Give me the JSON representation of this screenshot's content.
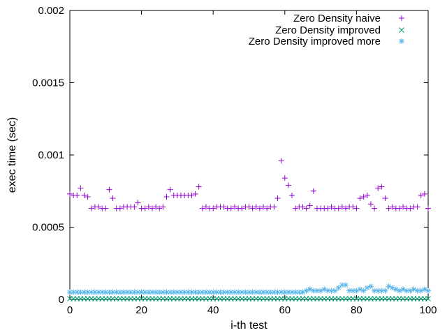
{
  "chart_data": {
    "type": "scatter",
    "title": "",
    "xlabel": "i-th test",
    "ylabel": "exec time (sec)",
    "xlim": [
      0,
      100
    ],
    "ylim": [
      0,
      0.002
    ],
    "xticks": [
      0,
      20,
      40,
      60,
      80,
      100
    ],
    "xtick_labels": [
      "0",
      "20",
      "40",
      "60",
      "80",
      "100"
    ],
    "yticks": [
      0,
      0.0005,
      0.001,
      0.0015,
      0.002
    ],
    "ytick_labels": [
      "0",
      "0.0005",
      "0.001",
      "0.0015",
      "0.002"
    ],
    "legend_position": "top-right",
    "grid": false,
    "series": [
      {
        "name": "Zero Density naive",
        "marker": "plus",
        "color": "#9400D3",
        "x": [
          0,
          1,
          2,
          3,
          4,
          5,
          6,
          7,
          8,
          9,
          10,
          11,
          12,
          13,
          14,
          15,
          16,
          17,
          18,
          19,
          20,
          21,
          22,
          23,
          24,
          25,
          26,
          27,
          28,
          29,
          30,
          31,
          32,
          33,
          34,
          35,
          36,
          37,
          38,
          39,
          40,
          41,
          42,
          43,
          44,
          45,
          46,
          47,
          48,
          49,
          50,
          51,
          52,
          53,
          54,
          55,
          56,
          57,
          58,
          59,
          60,
          61,
          62,
          63,
          64,
          65,
          66,
          67,
          68,
          69,
          70,
          71,
          72,
          73,
          74,
          75,
          76,
          77,
          78,
          79,
          80,
          81,
          82,
          83,
          84,
          85,
          86,
          87,
          88,
          89,
          90,
          91,
          92,
          93,
          94,
          95,
          96,
          97,
          98,
          99,
          100
        ],
        "y": [
          0.00073,
          0.00072,
          0.00072,
          0.00077,
          0.00072,
          0.00071,
          0.00063,
          0.00064,
          0.00064,
          0.00063,
          0.00063,
          0.00076,
          0.0007,
          0.00063,
          0.00063,
          0.00064,
          0.00064,
          0.00064,
          0.00064,
          0.00067,
          0.00063,
          0.00063,
          0.00064,
          0.00063,
          0.00064,
          0.00063,
          0.00064,
          0.00071,
          0.00076,
          0.00072,
          0.00072,
          0.00072,
          0.00072,
          0.00072,
          0.00072,
          0.00073,
          0.00078,
          0.00063,
          0.00064,
          0.00063,
          0.00063,
          0.00064,
          0.00064,
          0.00064,
          0.00063,
          0.00063,
          0.00064,
          0.00063,
          0.00063,
          0.00064,
          0.00064,
          0.00063,
          0.00064,
          0.00063,
          0.00064,
          0.00063,
          0.00064,
          0.00064,
          0.0007,
          0.00096,
          0.00084,
          0.00079,
          0.00072,
          0.00063,
          0.00064,
          0.00064,
          0.00063,
          0.00065,
          0.00075,
          0.00063,
          0.00063,
          0.00063,
          0.00063,
          0.00064,
          0.00063,
          0.00063,
          0.00064,
          0.00063,
          0.00064,
          0.00064,
          0.00063,
          0.0007,
          0.00071,
          0.00072,
          0.00066,
          0.00063,
          0.00077,
          0.00078,
          0.0007,
          0.00063,
          0.00064,
          0.00063,
          0.00063,
          0.00064,
          0.00063,
          0.00063,
          0.00064,
          0.00064,
          0.00072,
          0.00073,
          0.00063
        ]
      },
      {
        "name": "Zero Density improved",
        "marker": "x",
        "color": "#009E73",
        "x": [
          0,
          1,
          2,
          3,
          4,
          5,
          6,
          7,
          8,
          9,
          10,
          11,
          12,
          13,
          14,
          15,
          16,
          17,
          18,
          19,
          20,
          21,
          22,
          23,
          24,
          25,
          26,
          27,
          28,
          29,
          30,
          31,
          32,
          33,
          34,
          35,
          36,
          37,
          38,
          39,
          40,
          41,
          42,
          43,
          44,
          45,
          46,
          47,
          48,
          49,
          50,
          51,
          52,
          53,
          54,
          55,
          56,
          57,
          58,
          59,
          60,
          61,
          62,
          63,
          64,
          65,
          66,
          67,
          68,
          69,
          70,
          71,
          72,
          73,
          74,
          75,
          76,
          77,
          78,
          79,
          80,
          81,
          82,
          83,
          84,
          85,
          86,
          87,
          88,
          89,
          90,
          91,
          92,
          93,
          94,
          95,
          96,
          97,
          98,
          99,
          100
        ],
        "y": [
          5e-06,
          5e-06,
          5e-06,
          5e-06,
          5e-06,
          5e-06,
          5e-06,
          5e-06,
          5e-06,
          5e-06,
          5e-06,
          5e-06,
          5e-06,
          5e-06,
          5e-06,
          5e-06,
          5e-06,
          5e-06,
          5e-06,
          5e-06,
          5e-06,
          5e-06,
          5e-06,
          5e-06,
          5e-06,
          5e-06,
          5e-06,
          5e-06,
          5e-06,
          5e-06,
          5e-06,
          5e-06,
          5e-06,
          5e-06,
          5e-06,
          5e-06,
          5e-06,
          5e-06,
          5e-06,
          5e-06,
          5e-06,
          5e-06,
          5e-06,
          5e-06,
          5e-06,
          5e-06,
          5e-06,
          5e-06,
          5e-06,
          5e-06,
          5e-06,
          5e-06,
          5e-06,
          5e-06,
          5e-06,
          5e-06,
          5e-06,
          5e-06,
          5e-06,
          5e-06,
          5e-06,
          5e-06,
          5e-06,
          5e-06,
          5e-06,
          5e-06,
          5e-06,
          5e-06,
          5e-06,
          5e-06,
          5e-06,
          5e-06,
          5e-06,
          5e-06,
          5e-06,
          5e-06,
          5e-06,
          5e-06,
          5e-06,
          5e-06,
          5e-06,
          5e-06,
          5e-06,
          5e-06,
          5e-06,
          5e-06,
          5e-06,
          5e-06,
          5e-06,
          5e-06,
          5e-06,
          5e-06,
          5e-06,
          5e-06,
          5e-06,
          5e-06,
          5e-06,
          5e-06,
          5e-06,
          5e-06,
          5e-06
        ]
      },
      {
        "name": "Zero Density improved more",
        "marker": "star",
        "color": "#56B4E9",
        "x": [
          0,
          1,
          2,
          3,
          4,
          5,
          6,
          7,
          8,
          9,
          10,
          11,
          12,
          13,
          14,
          15,
          16,
          17,
          18,
          19,
          20,
          21,
          22,
          23,
          24,
          25,
          26,
          27,
          28,
          29,
          30,
          31,
          32,
          33,
          34,
          35,
          36,
          37,
          38,
          39,
          40,
          41,
          42,
          43,
          44,
          45,
          46,
          47,
          48,
          49,
          50,
          51,
          52,
          53,
          54,
          55,
          56,
          57,
          58,
          59,
          60,
          61,
          62,
          63,
          64,
          65,
          66,
          67,
          68,
          69,
          70,
          71,
          72,
          73,
          74,
          75,
          76,
          77,
          78,
          79,
          80,
          81,
          82,
          83,
          84,
          85,
          86,
          87,
          88,
          89,
          90,
          91,
          92,
          93,
          94,
          95,
          96,
          97,
          98,
          99,
          100
        ],
        "y": [
          5e-05,
          5e-05,
          5e-05,
          5e-05,
          5e-05,
          5e-05,
          5e-05,
          5e-05,
          5e-05,
          5e-05,
          5e-05,
          5e-05,
          5e-05,
          5e-05,
          5e-05,
          5e-05,
          5e-05,
          5e-05,
          5e-05,
          5e-05,
          5e-05,
          5e-05,
          5e-05,
          5e-05,
          5e-05,
          5e-05,
          5e-05,
          5e-05,
          5e-05,
          5e-05,
          5e-05,
          5e-05,
          5e-05,
          5e-05,
          5e-05,
          5e-05,
          5e-05,
          5e-05,
          5e-05,
          5e-05,
          5e-05,
          5e-05,
          5e-05,
          5e-05,
          5e-05,
          5e-05,
          5e-05,
          5e-05,
          5e-05,
          5e-05,
          5e-05,
          5e-05,
          5e-05,
          5e-05,
          5e-05,
          5e-05,
          5e-05,
          5e-05,
          5e-05,
          5e-05,
          5e-05,
          5e-05,
          5e-05,
          5e-05,
          5e-05,
          5e-05,
          6e-05,
          7e-05,
          6e-05,
          6e-05,
          6e-05,
          7e-05,
          6e-05,
          6e-05,
          6e-05,
          8e-05,
          0.0001,
          0.0001,
          6e-05,
          6e-05,
          6e-05,
          7e-05,
          6e-05,
          8e-05,
          9e-05,
          6e-05,
          6e-05,
          6e-05,
          6e-05,
          9e-05,
          8e-05,
          7e-05,
          6e-05,
          7e-05,
          6e-05,
          6e-05,
          7e-05,
          6e-05,
          6e-05,
          7e-05,
          6e-05
        ]
      }
    ]
  }
}
